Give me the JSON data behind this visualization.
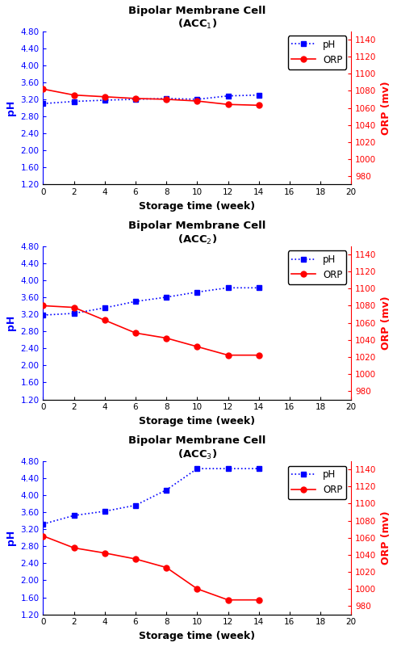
{
  "panels": [
    {
      "title_line1": "Bipolar Membrane Cell",
      "title_line2": "(ACC$_1$)",
      "x": [
        0,
        2,
        4,
        6,
        8,
        10,
        12,
        14
      ],
      "ph": [
        3.1,
        3.15,
        3.18,
        3.2,
        3.22,
        3.2,
        3.28,
        3.3
      ],
      "orp": [
        1082,
        1075,
        1073,
        1071,
        1070,
        1068,
        1064,
        1063
      ]
    },
    {
      "title_line1": "Bipolar Membrane Cell",
      "title_line2": "(ACC$_2$)",
      "x": [
        0,
        2,
        4,
        6,
        8,
        10,
        12,
        14
      ],
      "ph": [
        3.18,
        3.22,
        3.35,
        3.5,
        3.6,
        3.72,
        3.82,
        3.82
      ],
      "orp": [
        1080,
        1078,
        1063,
        1048,
        1042,
        1032,
        1022,
        1022
      ]
    },
    {
      "title_line1": "Bipolar Membrane Cell",
      "title_line2": "(ACC$_3$)",
      "x": [
        0,
        2,
        4,
        6,
        8,
        10,
        12,
        14
      ],
      "ph": [
        3.32,
        3.52,
        3.62,
        3.76,
        4.12,
        4.62,
        4.62,
        4.62
      ],
      "orp": [
        1062,
        1048,
        1042,
        1035,
        1025,
        1000,
        987,
        987
      ]
    }
  ],
  "ph_color": "#0000FF",
  "orp_color": "#FF0000",
  "ph_marker": "s",
  "orp_marker": "o",
  "line_style_ph": ":",
  "line_style_orp": "-",
  "xlim": [
    0,
    20
  ],
  "xticks": [
    0,
    2,
    4,
    6,
    8,
    10,
    12,
    14,
    16,
    18,
    20
  ],
  "ylim_ph": [
    1.2,
    4.8
  ],
  "yticks_ph": [
    1.2,
    1.6,
    2.0,
    2.4,
    2.8,
    3.2,
    3.6,
    4.0,
    4.4,
    4.8
  ],
  "ylim_orp": [
    970,
    1150
  ],
  "yticks_orp": [
    980,
    1000,
    1020,
    1040,
    1060,
    1080,
    1100,
    1120,
    1140
  ],
  "xlabel": "Storage time (week)",
  "ylabel_ph": "pH",
  "ylabel_orp": "ORP (mv)",
  "legend_ph": "pH",
  "legend_orp": "ORP",
  "title_fontsize": 9.5,
  "axis_label_fontsize": 9,
  "tick_fontsize": 7.5,
  "legend_fontsize": 8.5,
  "marker_size": 5,
  "line_width": 1.2
}
